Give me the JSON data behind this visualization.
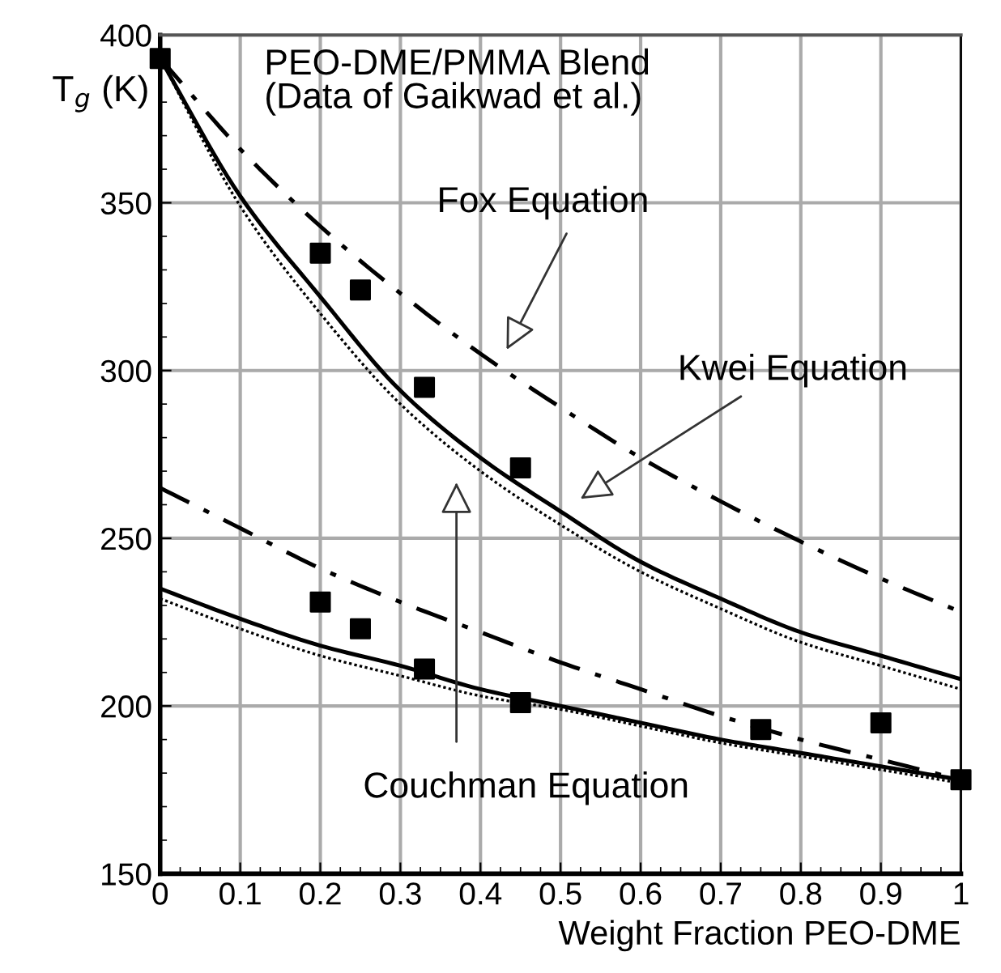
{
  "chart_data": {
    "type": "line",
    "xlabel": "Weight Fraction PEO-DME",
    "ylabel": "T$_{g}$ (K)",
    "x": [
      0,
      0.1,
      0.2,
      0.3,
      0.4,
      0.5,
      0.6,
      0.7,
      0.8,
      0.9,
      1
    ],
    "series": [
      {
        "color": "#000000",
        "line_style": "dashdot",
        "values": [
          393,
          366,
          343,
          323,
          305,
          289,
          274,
          261,
          249,
          238,
          228
        ]
      },
      {
        "color": "#000000",
        "line_style": "solid",
        "values": [
          393,
          352,
          322,
          294,
          274,
          258,
          243,
          232,
          222,
          215,
          208
        ]
      },
      {
        "color": "#000000",
        "line_style": "dotted",
        "values": [
          393,
          349,
          317,
          290,
          270,
          254,
          240,
          229,
          219,
          212,
          205
        ]
      },
      {
        "color": "#000000",
        "line_style": "dashdot",
        "values": [
          265,
          253,
          241,
          231,
          222,
          213,
          205,
          197,
          190,
          184,
          178
        ]
      },
      {
        "color": "#000000",
        "line_style": "solid",
        "values": [
          235,
          226,
          218,
          212,
          205,
          200,
          195,
          190,
          186,
          182,
          178
        ]
      },
      {
        "color": "#000000",
        "line_style": "dotted",
        "values": [
          232,
          223,
          215,
          209,
          203,
          199,
          194,
          189,
          185,
          181,
          177
        ]
      },
      {
        "type": "scatter",
        "marker": "square",
        "color": "#000000",
        "x": [
          0,
          0.2,
          0.25,
          0.33,
          0.45
        ],
        "values": [
          393,
          335,
          324,
          295,
          271
        ]
      },
      {
        "type": "scatter",
        "marker": "square",
        "color": "#000000",
        "x": [
          0.2,
          0.25,
          0.33,
          0.45,
          0.75,
          0.9,
          1
        ],
        "values": [
          231,
          223,
          211,
          201,
          193,
          195,
          178
        ]
      }
    ],
    "annotations": [
      "PEO-DME/PMMA Blend\n(Data of Gaikwad et al.)",
      "Fox Equation",
      "Kwei Equation",
      "Couchman Equation"
    ],
    "xlim": [
      0,
      1
    ],
    "ylim": [
      150,
      400
    ],
    "xticks": [
      0,
      0.1,
      0.2,
      0.3,
      0.4,
      0.5,
      0.6,
      0.7,
      0.8,
      0.9,
      1
    ],
    "yticks": [
      150,
      200,
      250,
      300,
      350,
      400
    ],
    "grid": true,
    "legend": false
  }
}
